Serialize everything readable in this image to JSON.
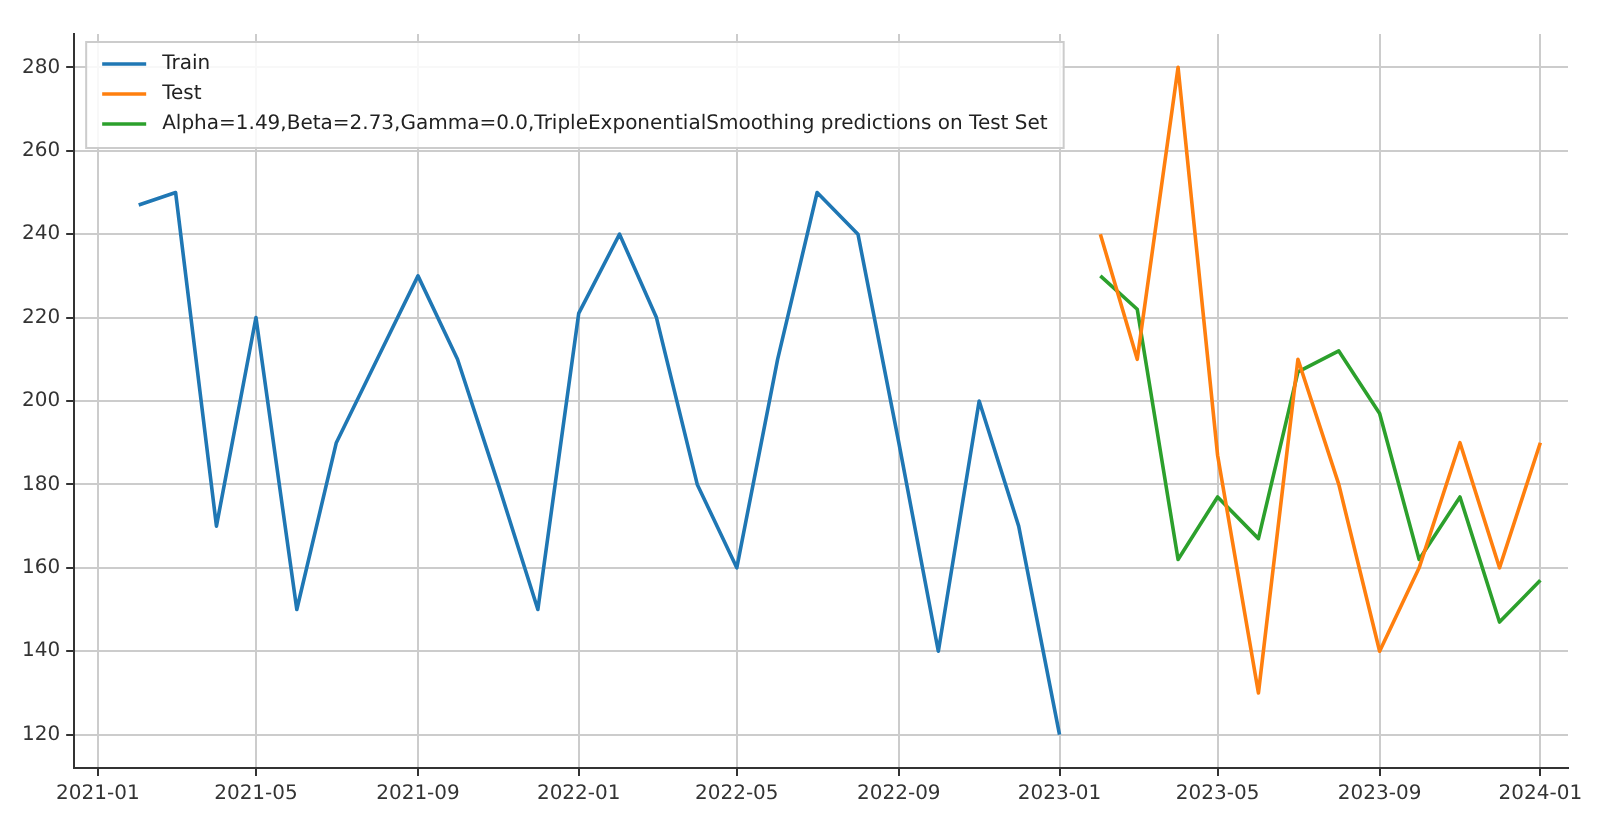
{
  "chart_data": {
    "type": "line",
    "series": [
      {
        "name": "Train",
        "color": "#1f77b4",
        "x": [
          "2021-02",
          "2021-03",
          "2021-04",
          "2021-05",
          "2021-06",
          "2021-07",
          "2021-08",
          "2021-09",
          "2021-10",
          "2021-11",
          "2021-12",
          "2022-01",
          "2022-02",
          "2022-03",
          "2022-04",
          "2022-05",
          "2022-06",
          "2022-07",
          "2022-08",
          "2022-09",
          "2022-10",
          "2022-11",
          "2022-12",
          "2023-01"
        ],
        "values": [
          247,
          250,
          170,
          220,
          150,
          190,
          210,
          230,
          210,
          180,
          150,
          221,
          240,
          220,
          180,
          160,
          210,
          250,
          240,
          190,
          140,
          200,
          170,
          120
        ]
      },
      {
        "name": "Test",
        "color": "#ff7f0e",
        "x": [
          "2023-02",
          "2023-03",
          "2023-04",
          "2023-05",
          "2023-06",
          "2023-07",
          "2023-08",
          "2023-09",
          "2023-10",
          "2023-11",
          "2023-12",
          "2024-01"
        ],
        "values": [
          240,
          210,
          280,
          187,
          130,
          210,
          180,
          140,
          160,
          190,
          160,
          190
        ]
      },
      {
        "name": "Alpha=1.49,Beta=2.73,Gamma=0.0,TripleExponentialSmoothing predictions on Test Set",
        "color": "#2ca02c",
        "x": [
          "2023-02",
          "2023-03",
          "2023-04",
          "2023-05",
          "2023-06",
          "2023-07",
          "2023-08",
          "2023-09",
          "2023-10",
          "2023-11",
          "2023-12",
          "2024-01"
        ],
        "values": [
          230,
          222,
          162,
          177,
          167,
          207,
          212,
          197,
          162,
          177,
          147,
          157
        ]
      }
    ],
    "xlim": [
      "2020-12-14",
      "2024-01-22"
    ],
    "xticks": [
      "2021-01",
      "2021-05",
      "2021-09",
      "2022-01",
      "2022-05",
      "2022-09",
      "2023-01",
      "2023-05",
      "2023-09",
      "2024-01"
    ],
    "ylim": [
      112,
      288
    ],
    "yticks": [
      120,
      140,
      160,
      180,
      200,
      220,
      240,
      260,
      280
    ],
    "grid": true,
    "legend": "top left",
    "marker": "none",
    "line_style": "solid"
  }
}
